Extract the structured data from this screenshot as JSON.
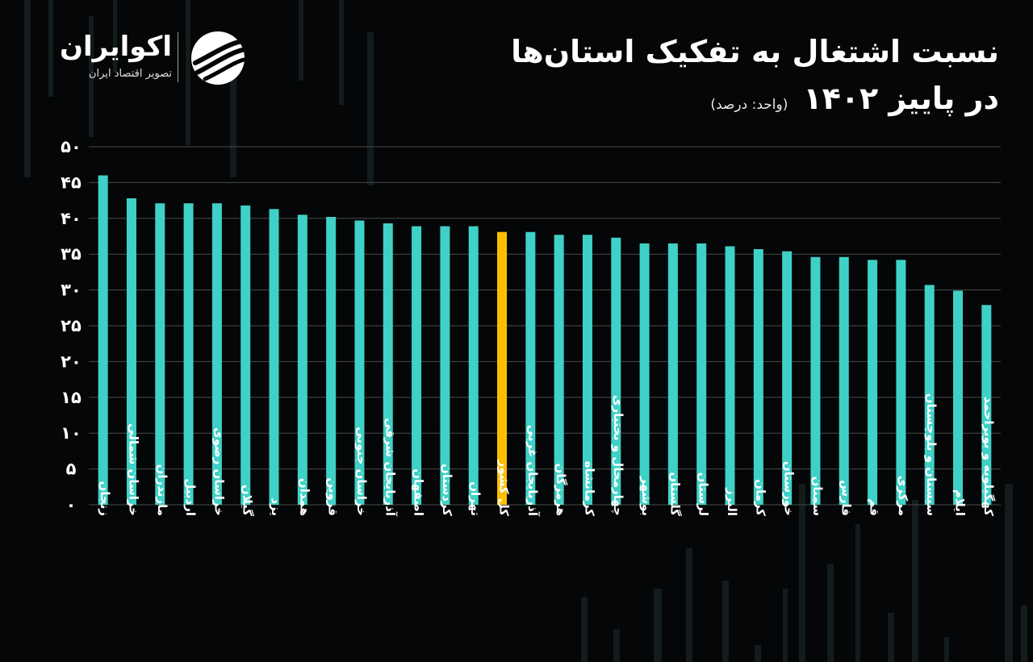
{
  "header": {
    "title": "نسبت اشتغال به تفکیک استان‌ها",
    "subtitle": "در پاییز ۱۴۰۲",
    "unit": "(واحد: درصد)"
  },
  "brand": {
    "name": "اکوایران",
    "tagline": "تصویر اقتصاد ایران",
    "logo_icon": "ecoiran-swirl-logo"
  },
  "colors": {
    "background": "#050607",
    "bar": "#3fd1c7",
    "highlight": "#ffbf00",
    "grid": "#4a4a4a",
    "text": "#ffffff"
  },
  "chart_data": {
    "type": "bar",
    "categories": [
      "زنجان",
      "خراسان شمالی",
      "مازندران",
      "اردبیل",
      "خراسان رضوی",
      "گیلان",
      "یزد",
      "همدان",
      "قزوین",
      "خراسان جنوبی",
      "آذربایجان شرقی",
      "اصفهان",
      "کردستان",
      "تهران",
      "کل کشور",
      "آذربایجان غربی",
      "هرمزگان",
      "کرمانشاه",
      "چهارمحال و بختیاری",
      "بوشهر",
      "گلستان",
      "لرستان",
      "البرز",
      "کرمان",
      "خوزستان",
      "سمنان",
      "فارس",
      "قم",
      "مرکزی",
      "سیستان و بلوچستان",
      "ایلام",
      "کهگیلویه و بویراحمد"
    ],
    "values": [
      46.0,
      42.8,
      42.1,
      42.1,
      42.1,
      41.8,
      41.3,
      40.5,
      40.2,
      39.7,
      39.3,
      38.9,
      38.9,
      38.9,
      38.1,
      38.1,
      37.7,
      37.7,
      37.3,
      36.5,
      36.5,
      36.5,
      36.1,
      35.7,
      35.4,
      34.6,
      34.6,
      34.2,
      34.2,
      30.7,
      29.9,
      27.9
    ],
    "highlight_category": "کل کشور",
    "y_ticks": [
      "۰",
      "۵",
      "۱۰",
      "۱۵",
      "۲۰",
      "۲۵",
      "۳۰",
      "۳۵",
      "۴۰",
      "۴۵",
      "۵۰"
    ],
    "ylim": [
      0,
      50
    ],
    "grid": true,
    "legend": "none"
  }
}
